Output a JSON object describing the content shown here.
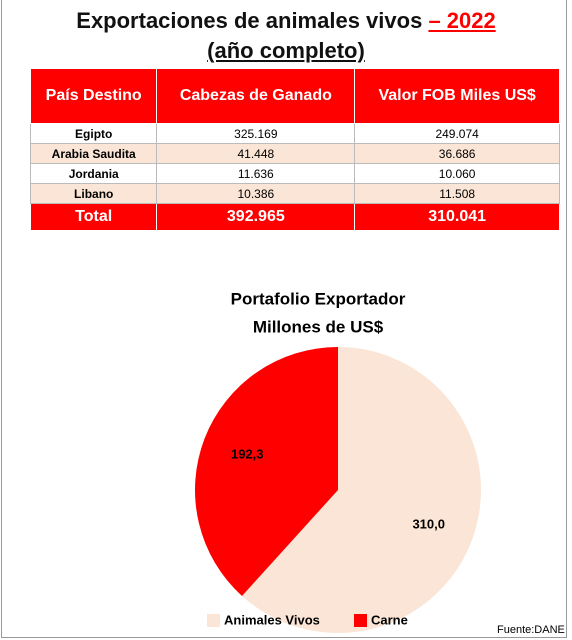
{
  "header": {
    "title": "Exportaciones de animales vivos",
    "year": "– 2022",
    "subtitle": "(año completo)"
  },
  "table": {
    "columns": [
      "País Destino",
      "Cabezas de Ganado",
      "Valor FOB Miles US$"
    ],
    "rows": [
      [
        "Egipto",
        "325.169",
        "249.074"
      ],
      [
        "Arabia Saudita",
        "41.448",
        "36.686"
      ],
      [
        "Jordania",
        "11.636",
        "10.060"
      ],
      [
        "Libano",
        "10.386",
        "11.508"
      ]
    ],
    "total": [
      "Total",
      "392.965",
      "310.041"
    ]
  },
  "chart_data": {
    "type": "pie",
    "title": "Portafolio Exportador",
    "subtitle": "Millones de US$",
    "categories": [
      "Animales Vivos",
      "Carne"
    ],
    "values": [
      310.0,
      192.3
    ],
    "value_labels": [
      "310,0",
      "192,3"
    ],
    "colors": [
      "#fbe5d6",
      "#ff0000"
    ]
  },
  "source": "Fuente:DANE"
}
